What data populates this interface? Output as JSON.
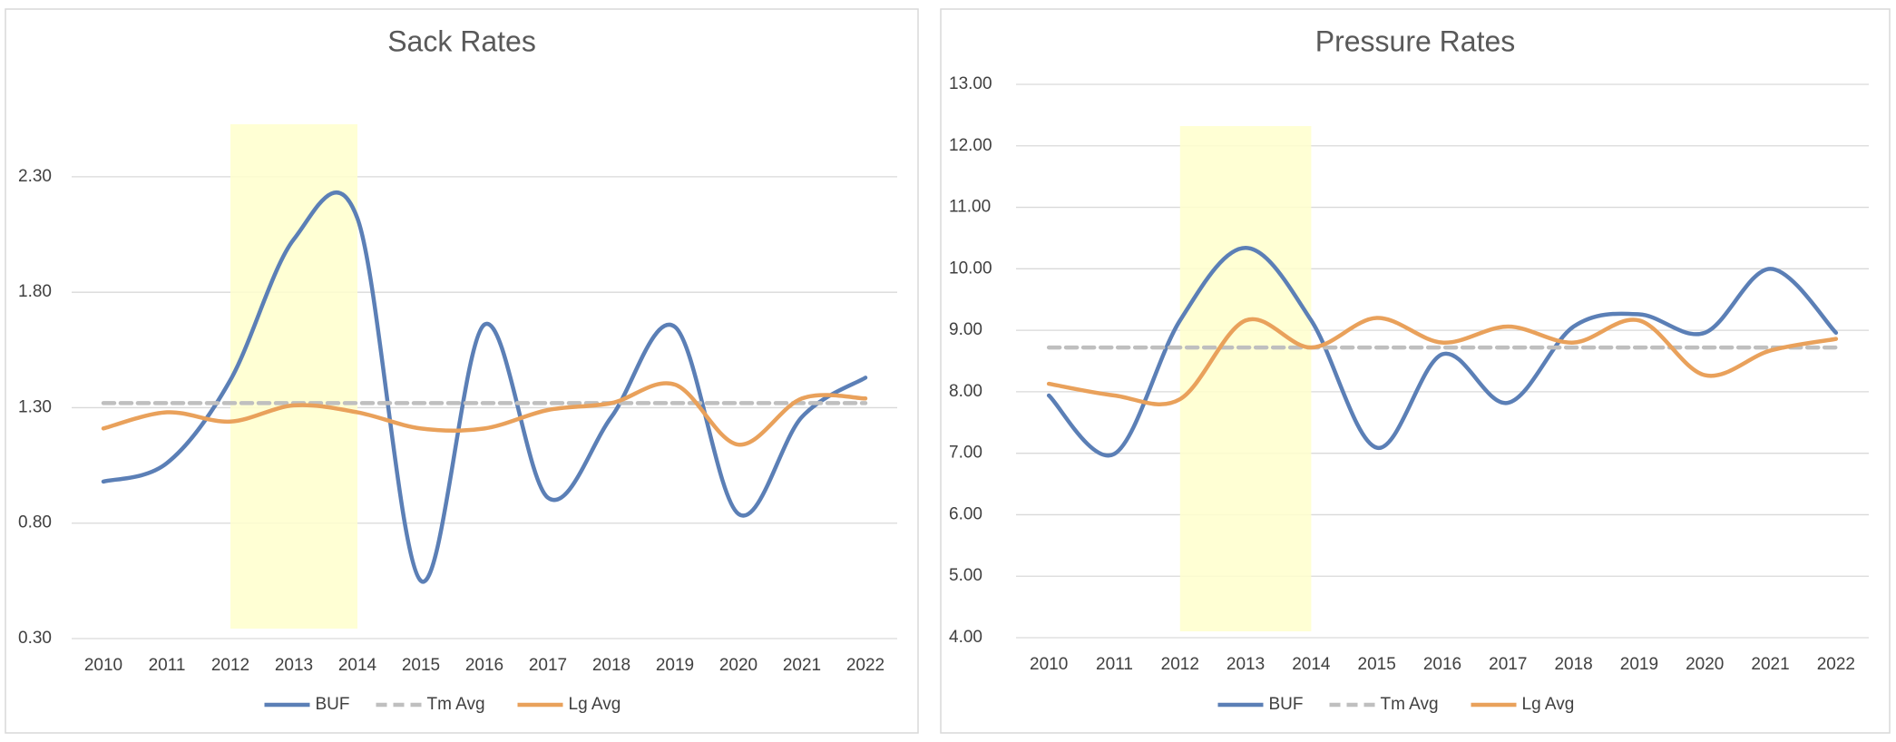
{
  "chart_data": [
    {
      "type": "line",
      "title": "Sack Rates",
      "categories": [
        "2010",
        "2011",
        "2012",
        "2013",
        "2014",
        "2015",
        "2016",
        "2017",
        "2018",
        "2019",
        "2020",
        "2021",
        "2022"
      ],
      "ylim": [
        0.3,
        2.5
      ],
      "yticks": [
        {
          "value": 0.3,
          "label": "0.30"
        },
        {
          "value": 0.8,
          "label": "0.80"
        },
        {
          "value": 1.3,
          "label": "1.30"
        },
        {
          "value": 1.8,
          "label": "1.80"
        },
        {
          "value": 2.3,
          "label": "2.30"
        }
      ],
      "grid": true,
      "smooth": true,
      "series": [
        {
          "name": "BUF",
          "color": "#5b7fb6",
          "values": [
            0.98,
            1.06,
            1.42,
            2.03,
            2.12,
            0.55,
            1.66,
            0.91,
            1.26,
            1.65,
            0.84,
            1.26,
            1.43
          ]
        },
        {
          "name": "Tm Avg",
          "color": "#bfbfbf",
          "dashed": true,
          "values": [
            1.32,
            1.32,
            1.32,
            1.32,
            1.32,
            1.32,
            1.32,
            1.32,
            1.32,
            1.32,
            1.32,
            1.32,
            1.32
          ]
        },
        {
          "name": "Lg Avg",
          "color": "#e9a15b",
          "values": [
            1.21,
            1.28,
            1.24,
            1.31,
            1.28,
            1.21,
            1.21,
            1.29,
            1.32,
            1.4,
            1.14,
            1.34,
            1.34
          ]
        }
      ]
    },
    {
      "type": "line",
      "title": "Pressure Rates",
      "categories": [
        "2010",
        "2011",
        "2012",
        "2013",
        "2014",
        "2015",
        "2016",
        "2017",
        "2018",
        "2019",
        "2020",
        "2021",
        "2022"
      ],
      "ylim": [
        4,
        13
      ],
      "yticks": [
        {
          "value": 4,
          "label": "4.00"
        },
        {
          "value": 5,
          "label": "5.00"
        },
        {
          "value": 6,
          "label": "6.00"
        },
        {
          "value": 7,
          "label": "7.00"
        },
        {
          "value": 8,
          "label": "8.00"
        },
        {
          "value": 9,
          "label": "9.00"
        },
        {
          "value": 10,
          "label": "10.00"
        },
        {
          "value": 11,
          "label": "11.00"
        },
        {
          "value": 12,
          "label": "12.00"
        },
        {
          "value": 13,
          "label": "13.00"
        }
      ],
      "grid": true,
      "smooth": true,
      "series": [
        {
          "name": "BUF",
          "color": "#5b7fb6",
          "values": [
            7.94,
            6.99,
            9.16,
            10.34,
            9.16,
            7.09,
            8.61,
            7.82,
            9.06,
            9.26,
            8.96,
            10.0,
            8.96
          ]
        },
        {
          "name": "Tm Avg",
          "color": "#bfbfbf",
          "dashed": true,
          "values": [
            8.72,
            8.72,
            8.72,
            8.72,
            8.72,
            8.72,
            8.72,
            8.72,
            8.72,
            8.72,
            8.72,
            8.72,
            8.72
          ]
        },
        {
          "name": "Lg Avg",
          "color": "#e9a15b",
          "values": [
            8.13,
            7.94,
            7.88,
            9.16,
            8.72,
            9.2,
            8.8,
            9.06,
            8.8,
            9.16,
            8.27,
            8.67,
            8.86
          ]
        }
      ]
    }
  ]
}
